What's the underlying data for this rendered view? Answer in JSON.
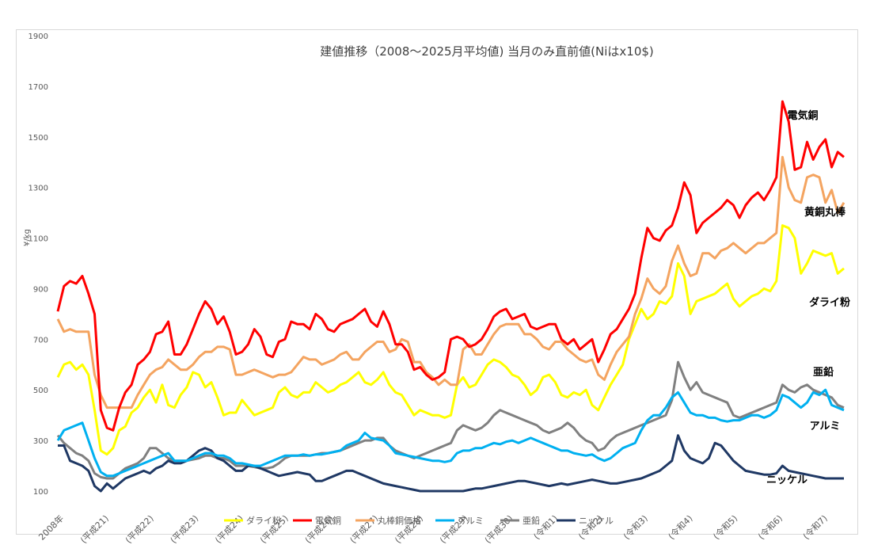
{
  "chart_data": {
    "type": "line",
    "title": "建値推移（2008～2025月平均値) 当月のみ直前値(Niはx10$)",
    "ylabel": "¥/kg",
    "ylim": [
      100,
      1900
    ],
    "y_ticks": [
      100,
      300,
      500,
      700,
      900,
      1100,
      1300,
      1500,
      1700,
      1900
    ],
    "x_ticks": [
      "2008年",
      "(平成21)",
      "(平成22)",
      "(平成23)",
      "(平成24)",
      "(平成25)",
      "(平成26)",
      "(平成27)",
      "(平成28)",
      "(平成29)",
      "(平成30)",
      "(令和1)",
      "(令和2)",
      "(令和3)",
      "(令和4)",
      "(令和5)",
      "(令和6)",
      "(令和7)"
    ],
    "x_start": 2008,
    "grid": false,
    "legend_position": "bottom",
    "series": [
      {
        "name": "ダライ粉",
        "label": "ダライ粉",
        "color": "#ffff00",
        "values": [
          550,
          600,
          610,
          580,
          600,
          560,
          420,
          260,
          245,
          270,
          340,
          355,
          410,
          430,
          470,
          500,
          450,
          520,
          440,
          430,
          480,
          510,
          570,
          560,
          510,
          530,
          470,
          400,
          410,
          410,
          460,
          430,
          400,
          410,
          420,
          430,
          490,
          510,
          480,
          470,
          490,
          490,
          530,
          510,
          490,
          500,
          520,
          530,
          550,
          570,
          530,
          520,
          540,
          570,
          520,
          490,
          480,
          440,
          400,
          420,
          410,
          400,
          400,
          390,
          400,
          520,
          550,
          510,
          520,
          560,
          600,
          620,
          610,
          590,
          560,
          550,
          520,
          480,
          500,
          550,
          560,
          530,
          480,
          470,
          490,
          480,
          500,
          440,
          420,
          470,
          520,
          560,
          600,
          700,
          760,
          820,
          780,
          800,
          850,
          840,
          870,
          1000,
          950,
          800,
          850,
          860,
          870,
          880,
          900,
          920,
          860,
          830,
          850,
          870,
          880,
          900,
          890,
          930,
          1150,
          1140,
          1100,
          960,
          1000,
          1050,
          1040,
          1030,
          1040,
          960,
          980
        ]
      },
      {
        "name": "電気銅",
        "label": "電気銅",
        "color": "#ff0000",
        "values": [
          810,
          910,
          930,
          920,
          950,
          880,
          800,
          420,
          350,
          340,
          430,
          490,
          520,
          600,
          620,
          650,
          720,
          730,
          770,
          640,
          640,
          680,
          740,
          800,
          850,
          820,
          760,
          790,
          730,
          640,
          650,
          680,
          740,
          710,
          640,
          630,
          690,
          700,
          770,
          760,
          760,
          740,
          800,
          780,
          740,
          730,
          760,
          770,
          780,
          800,
          820,
          770,
          750,
          810,
          760,
          680,
          680,
          650,
          580,
          590,
          560,
          540,
          550,
          570,
          700,
          710,
          700,
          670,
          680,
          700,
          740,
          790,
          810,
          820,
          780,
          790,
          800,
          750,
          740,
          750,
          760,
          760,
          700,
          680,
          700,
          660,
          680,
          700,
          610,
          660,
          720,
          740,
          780,
          820,
          880,
          1020,
          1140,
          1100,
          1090,
          1130,
          1150,
          1220,
          1320,
          1270,
          1120,
          1160,
          1180,
          1200,
          1220,
          1250,
          1230,
          1180,
          1230,
          1260,
          1280,
          1250,
          1290,
          1340,
          1640,
          1560,
          1370,
          1380,
          1480,
          1410,
          1460,
          1490,
          1380,
          1440,
          1420
        ]
      },
      {
        "name": "丸棒銅価格",
        "label": "丸棒銅価格",
        "color": "#f4a460",
        "values": [
          780,
          730,
          740,
          730,
          730,
          730,
          560,
          480,
          430,
          430,
          430,
          430,
          430,
          480,
          520,
          560,
          580,
          590,
          620,
          600,
          580,
          580,
          600,
          630,
          650,
          650,
          670,
          670,
          660,
          560,
          560,
          570,
          580,
          570,
          560,
          550,
          560,
          560,
          570,
          600,
          630,
          620,
          620,
          600,
          610,
          620,
          640,
          650,
          620,
          620,
          650,
          670,
          690,
          690,
          650,
          660,
          700,
          690,
          610,
          610,
          570,
          550,
          520,
          540,
          520,
          520,
          660,
          680,
          640,
          640,
          680,
          720,
          750,
          760,
          760,
          760,
          720,
          720,
          700,
          670,
          660,
          690,
          690,
          660,
          640,
          620,
          610,
          620,
          560,
          540,
          600,
          650,
          680,
          710,
          800,
          860,
          940,
          900,
          880,
          910,
          1010,
          1070,
          1000,
          950,
          960,
          1040,
          1040,
          1020,
          1050,
          1060,
          1080,
          1060,
          1040,
          1060,
          1080,
          1080,
          1100,
          1120,
          1420,
          1300,
          1250,
          1240,
          1340,
          1350,
          1340,
          1240,
          1290,
          1200,
          1240
        ]
      },
      {
        "name": "アルミ",
        "label": "アルミ",
        "color": "#00b0f0",
        "values": [
          300,
          340,
          350,
          360,
          370,
          300,
          230,
          175,
          160,
          160,
          170,
          180,
          190,
          200,
          210,
          220,
          230,
          240,
          250,
          220,
          220,
          220,
          230,
          240,
          250,
          250,
          240,
          240,
          230,
          210,
          210,
          205,
          200,
          200,
          210,
          220,
          230,
          240,
          240,
          240,
          245,
          240,
          245,
          245,
          250,
          255,
          260,
          280,
          290,
          300,
          330,
          310,
          305,
          300,
          280,
          250,
          245,
          240,
          235,
          230,
          225,
          220,
          220,
          215,
          220,
          250,
          260,
          260,
          270,
          270,
          280,
          290,
          285,
          295,
          300,
          290,
          300,
          310,
          300,
          290,
          280,
          270,
          260,
          260,
          250,
          245,
          240,
          245,
          230,
          220,
          230,
          250,
          270,
          280,
          290,
          340,
          380,
          400,
          400,
          430,
          470,
          490,
          450,
          410,
          400,
          400,
          390,
          390,
          380,
          375,
          380,
          380,
          390,
          400,
          400,
          390,
          400,
          420,
          480,
          470,
          450,
          430,
          450,
          490,
          480,
          500,
          440,
          430,
          420
        ]
      },
      {
        "name": "亜鉛",
        "label": "亜鉛",
        "color": "#808080",
        "values": [
          320,
          290,
          270,
          250,
          240,
          220,
          170,
          155,
          150,
          150,
          170,
          190,
          200,
          210,
          230,
          270,
          270,
          250,
          230,
          220,
          220,
          220,
          225,
          230,
          240,
          240,
          230,
          230,
          220,
          200,
          200,
          200,
          195,
          190,
          190,
          195,
          210,
          230,
          240,
          240,
          240,
          240,
          245,
          250,
          250,
          255,
          260,
          270,
          280,
          290,
          300,
          300,
          310,
          310,
          280,
          260,
          250,
          240,
          230,
          240,
          250,
          260,
          270,
          280,
          290,
          340,
          360,
          350,
          340,
          350,
          370,
          400,
          420,
          410,
          400,
          390,
          380,
          370,
          360,
          340,
          330,
          340,
          350,
          370,
          350,
          320,
          300,
          290,
          260,
          270,
          300,
          320,
          330,
          340,
          350,
          360,
          370,
          380,
          390,
          400,
          460,
          610,
          550,
          500,
          530,
          490,
          480,
          470,
          460,
          450,
          400,
          390,
          400,
          410,
          420,
          430,
          440,
          450,
          520,
          500,
          490,
          510,
          520,
          500,
          490,
          480,
          470,
          440,
          430
        ]
      },
      {
        "name": "ニッケル",
        "label": "ニッケル",
        "color": "#1f3864",
        "values": [
          280,
          280,
          220,
          210,
          200,
          180,
          120,
          100,
          130,
          110,
          130,
          150,
          160,
          170,
          180,
          170,
          190,
          200,
          220,
          210,
          210,
          220,
          240,
          260,
          270,
          260,
          230,
          220,
          200,
          180,
          180,
          200,
          200,
          190,
          180,
          170,
          160,
          165,
          170,
          175,
          170,
          165,
          140,
          140,
          150,
          160,
          170,
          180,
          180,
          170,
          160,
          150,
          140,
          130,
          125,
          120,
          115,
          110,
          105,
          100,
          100,
          100,
          100,
          100,
          100,
          100,
          100,
          105,
          110,
          110,
          115,
          120,
          125,
          130,
          135,
          140,
          140,
          135,
          130,
          125,
          120,
          125,
          130,
          125,
          130,
          135,
          140,
          145,
          140,
          135,
          130,
          130,
          135,
          140,
          145,
          150,
          160,
          170,
          180,
          200,
          220,
          320,
          260,
          230,
          220,
          210,
          230,
          290,
          280,
          250,
          220,
          200,
          180,
          175,
          170,
          165,
          165,
          170,
          200,
          180,
          175,
          170,
          165,
          160,
          155,
          150,
          150,
          150,
          150
        ]
      }
    ],
    "annotations": [
      "電気銅",
      "黄銅丸棒",
      "ダライ粉",
      "亜鉛",
      "アルミ",
      "ニッケル"
    ]
  }
}
